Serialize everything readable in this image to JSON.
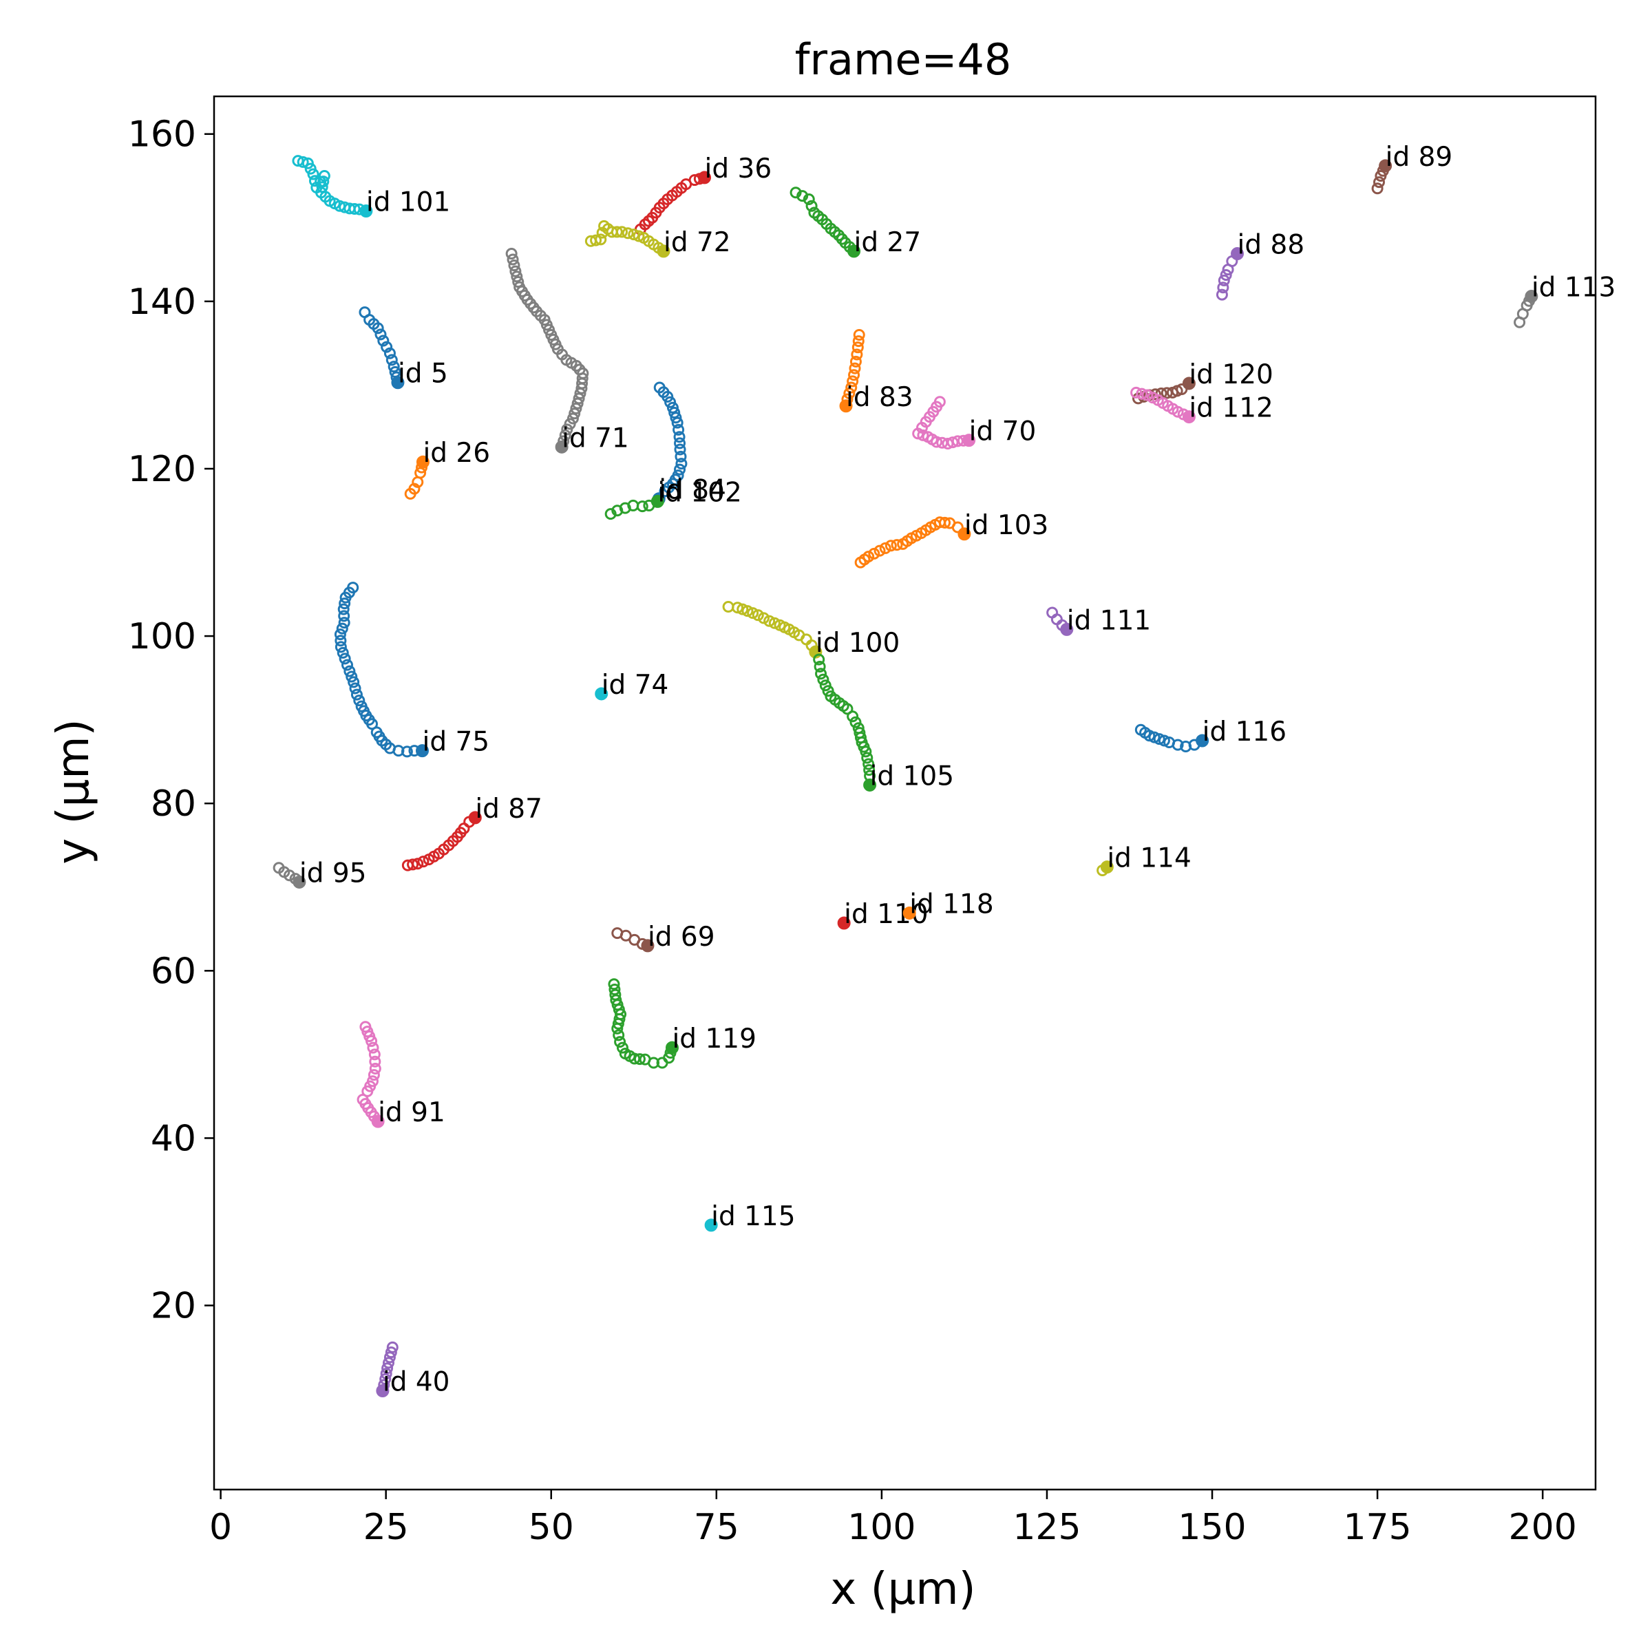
{
  "chart_data": {
    "type": "scatter",
    "title": "frame=48",
    "xlabel": "x (μm)",
    "ylabel": "y (μm)",
    "xlim": [
      -1,
      208
    ],
    "ylim": [
      -2,
      164.5
    ],
    "xticks": [
      0,
      25,
      50,
      75,
      100,
      125,
      150,
      175,
      200
    ],
    "yticks": [
      20,
      40,
      60,
      80,
      100,
      120,
      140,
      160
    ],
    "grid": false,
    "legend": "none",
    "marker": "open-circle",
    "tracks": [
      {
        "label": "id 101",
        "color": "#17becf",
        "points": [
          [
            11.7,
            156.8
          ],
          [
            13.2,
            156.5
          ],
          [
            14.0,
            155.2
          ],
          [
            14.5,
            153.6
          ],
          [
            15.7,
            155.0
          ],
          [
            15.2,
            153.0
          ],
          [
            16.5,
            152.0
          ],
          [
            18.0,
            151.4
          ],
          [
            19.5,
            151.1
          ],
          [
            21.0,
            151.0
          ],
          [
            22.0,
            150.8
          ]
        ]
      },
      {
        "label": "id 36",
        "color": "#d62728",
        "points": [
          [
            63.5,
            148.6
          ],
          [
            64.2,
            149.2
          ],
          [
            65.3,
            150.0
          ],
          [
            66.4,
            151.2
          ],
          [
            67.6,
            152.2
          ],
          [
            69.0,
            153.1
          ],
          [
            70.4,
            154.0
          ],
          [
            71.7,
            154.5
          ],
          [
            73.2,
            154.8
          ]
        ]
      },
      {
        "label": "id 72",
        "color": "#bcbd22",
        "points": [
          [
            56.0,
            147.2
          ],
          [
            57.5,
            147.4
          ],
          [
            58.0,
            149.0
          ],
          [
            59.2,
            148.3
          ],
          [
            60.7,
            148.3
          ],
          [
            62.5,
            148.0
          ],
          [
            64.0,
            147.6
          ],
          [
            65.5,
            146.8
          ],
          [
            67.0,
            146.0
          ]
        ]
      },
      {
        "label": "id 27",
        "color": "#2ca02c",
        "points": [
          [
            87.0,
            153.0
          ],
          [
            88.0,
            152.6
          ],
          [
            89.0,
            152.2
          ],
          [
            89.8,
            150.6
          ],
          [
            91.0,
            149.8
          ],
          [
            92.3,
            148.7
          ],
          [
            93.5,
            147.9
          ],
          [
            94.5,
            147.0
          ],
          [
            95.8,
            146.0
          ]
        ]
      },
      {
        "label": "id 89",
        "color": "#8c564b",
        "points": [
          [
            175.0,
            153.5
          ],
          [
            175.5,
            155.0
          ],
          [
            176.2,
            156.2
          ]
        ]
      },
      {
        "label": "id 88",
        "color": "#9467bd",
        "points": [
          [
            151.5,
            140.8
          ],
          [
            151.8,
            142.5
          ],
          [
            152.4,
            143.8
          ],
          [
            153.0,
            144.8
          ],
          [
            153.8,
            145.7
          ]
        ]
      },
      {
        "label": "id 113",
        "color": "#7f7f7f",
        "points": [
          [
            196.5,
            137.5
          ],
          [
            197.0,
            138.5
          ],
          [
            197.6,
            139.5
          ],
          [
            198.3,
            140.6
          ]
        ]
      },
      {
        "label": "id 5",
        "color": "#1f77b4",
        "points": [
          [
            21.8,
            138.7
          ],
          [
            22.5,
            137.8
          ],
          [
            23.8,
            136.8
          ],
          [
            24.6,
            135.3
          ],
          [
            25.6,
            133.8
          ],
          [
            26.2,
            132.2
          ],
          [
            26.8,
            130.3
          ]
        ]
      },
      {
        "label": "id 71",
        "color": "#7f7f7f",
        "points": [
          [
            44.0,
            145.7
          ],
          [
            44.6,
            143.6
          ],
          [
            45.2,
            141.7
          ],
          [
            46.4,
            140.2
          ],
          [
            47.8,
            138.8
          ],
          [
            49.0,
            137.8
          ],
          [
            50.0,
            136.0
          ],
          [
            51.0,
            134.3
          ],
          [
            52.3,
            133.0
          ],
          [
            53.8,
            132.3
          ],
          [
            54.8,
            131.4
          ],
          [
            54.6,
            129.6
          ],
          [
            54.0,
            127.8
          ],
          [
            53.3,
            126.0
          ],
          [
            52.4,
            124.7
          ],
          [
            51.6,
            122.6
          ]
        ]
      },
      {
        "label": "id 83",
        "color": "#ff7f0e",
        "points": [
          [
            96.6,
            136.0
          ],
          [
            96.4,
            134.5
          ],
          [
            96.1,
            132.8
          ],
          [
            95.8,
            131.2
          ],
          [
            95.4,
            129.7
          ],
          [
            94.8,
            128.3
          ],
          [
            94.6,
            127.5
          ]
        ]
      },
      {
        "label": "id 70",
        "color": "#e377c2",
        "points": [
          [
            108.8,
            128.0
          ],
          [
            107.8,
            126.8
          ],
          [
            106.7,
            125.6
          ],
          [
            105.5,
            124.2
          ],
          [
            107.0,
            123.8
          ],
          [
            108.3,
            123.2
          ],
          [
            110.0,
            123.0
          ],
          [
            111.5,
            123.3
          ],
          [
            113.2,
            123.4
          ]
        ]
      },
      {
        "label": "id 120",
        "color": "#8c564b",
        "points": [
          [
            138.8,
            128.4
          ],
          [
            140.5,
            128.8
          ],
          [
            142.3,
            129.0
          ],
          [
            144.0,
            129.1
          ],
          [
            145.4,
            129.5
          ],
          [
            146.5,
            130.2
          ]
        ]
      },
      {
        "label": "id 112",
        "color": "#e377c2",
        "points": [
          [
            138.5,
            129.1
          ],
          [
            140.2,
            128.8
          ],
          [
            141.8,
            128.2
          ],
          [
            143.3,
            127.5
          ],
          [
            144.8,
            126.8
          ],
          [
            146.5,
            126.2
          ]
        ]
      },
      {
        "label": "id 26",
        "color": "#ff7f0e",
        "points": [
          [
            28.7,
            117.0
          ],
          [
            29.3,
            117.6
          ],
          [
            29.8,
            118.4
          ],
          [
            30.2,
            119.5
          ],
          [
            30.6,
            120.8
          ]
        ]
      },
      {
        "label": "id 84",
        "color": "#1f77b4",
        "points": [
          [
            66.4,
            129.7
          ],
          [
            67.6,
            128.6
          ],
          [
            68.4,
            127.3
          ],
          [
            69.1,
            125.5
          ],
          [
            69.4,
            123.8
          ],
          [
            69.5,
            122.3
          ],
          [
            69.7,
            120.6
          ],
          [
            69.2,
            119.2
          ],
          [
            68.4,
            118.2
          ],
          [
            67.2,
            117.3
          ],
          [
            66.3,
            116.4
          ]
        ]
      },
      {
        "label": "id 102",
        "color": "#2ca02c",
        "points": [
          [
            59.0,
            114.6
          ],
          [
            60.0,
            115.0
          ],
          [
            61.2,
            115.3
          ],
          [
            62.4,
            115.6
          ],
          [
            63.8,
            115.5
          ],
          [
            64.8,
            115.6
          ],
          [
            66.1,
            116.1
          ]
        ]
      },
      {
        "label": "id 103",
        "color": "#ff7f0e",
        "points": [
          [
            96.8,
            108.8
          ],
          [
            98.0,
            109.5
          ],
          [
            99.7,
            110.2
          ],
          [
            101.4,
            110.8
          ],
          [
            103.2,
            111.0
          ],
          [
            104.5,
            111.7
          ],
          [
            106.0,
            112.3
          ],
          [
            107.4,
            113.0
          ],
          [
            108.8,
            113.6
          ],
          [
            110.3,
            113.5
          ],
          [
            111.5,
            113.0
          ],
          [
            112.5,
            112.2
          ]
        ]
      },
      {
        "label": "id 111",
        "color": "#9467bd",
        "points": [
          [
            125.8,
            102.8
          ],
          [
            126.5,
            102.0
          ],
          [
            127.3,
            101.3
          ],
          [
            128.0,
            100.8
          ]
        ]
      },
      {
        "label": "id 75",
        "color": "#1f77b4",
        "points": [
          [
            20.0,
            105.8
          ],
          [
            18.9,
            104.6
          ],
          [
            18.6,
            103.2
          ],
          [
            18.7,
            101.6
          ],
          [
            18.1,
            100.2
          ],
          [
            18.2,
            98.7
          ],
          [
            18.8,
            97.3
          ],
          [
            19.5,
            95.8
          ],
          [
            20.1,
            94.5
          ],
          [
            20.6,
            93.0
          ],
          [
            21.3,
            91.6
          ],
          [
            22.0,
            90.5
          ],
          [
            22.9,
            89.5
          ],
          [
            23.6,
            88.5
          ],
          [
            24.4,
            87.5
          ],
          [
            25.6,
            86.6
          ],
          [
            26.9,
            86.3
          ],
          [
            28.2,
            86.2
          ],
          [
            29.3,
            86.3
          ],
          [
            30.5,
            86.3
          ]
        ]
      },
      {
        "label": "id 100",
        "color": "#bcbd22",
        "points": [
          [
            76.8,
            103.5
          ],
          [
            78.2,
            103.4
          ],
          [
            79.7,
            103.0
          ],
          [
            81.3,
            102.5
          ],
          [
            83.0,
            101.8
          ],
          [
            84.6,
            101.3
          ],
          [
            86.0,
            100.8
          ],
          [
            87.5,
            100.1
          ],
          [
            88.6,
            99.6
          ],
          [
            89.4,
            98.9
          ],
          [
            90.0,
            98.1
          ]
        ]
      },
      {
        "label": "id 105",
        "color": "#2ca02c",
        "points": [
          [
            90.5,
            97.2
          ],
          [
            90.8,
            95.5
          ],
          [
            91.5,
            94.1
          ],
          [
            92.3,
            92.8
          ],
          [
            93.6,
            92.0
          ],
          [
            94.8,
            91.3
          ],
          [
            95.6,
            90.4
          ],
          [
            96.5,
            89.0
          ],
          [
            97.0,
            87.3
          ],
          [
            97.6,
            86.2
          ],
          [
            98.0,
            84.7
          ],
          [
            98.2,
            83.3
          ],
          [
            98.2,
            82.2
          ]
        ]
      },
      {
        "label": "id 74",
        "color": "#17becf",
        "points": [
          [
            57.6,
            93.1
          ]
        ]
      },
      {
        "label": "id 116",
        "color": "#1f77b4",
        "points": [
          [
            139.2,
            88.8
          ],
          [
            140.5,
            88.1
          ],
          [
            142.0,
            87.7
          ],
          [
            143.5,
            87.3
          ],
          [
            144.8,
            87.0
          ],
          [
            146.0,
            86.8
          ],
          [
            147.3,
            87.0
          ],
          [
            148.5,
            87.5
          ]
        ]
      },
      {
        "label": "id 87",
        "color": "#d62728",
        "points": [
          [
            28.3,
            72.6
          ],
          [
            29.8,
            72.8
          ],
          [
            31.5,
            73.3
          ],
          [
            33.0,
            74.0
          ],
          [
            34.5,
            75.0
          ],
          [
            35.8,
            76.0
          ],
          [
            36.8,
            77.0
          ],
          [
            37.6,
            77.8
          ],
          [
            38.5,
            78.3
          ]
        ]
      },
      {
        "label": "id 95",
        "color": "#7f7f7f",
        "points": [
          [
            8.8,
            72.3
          ],
          [
            9.6,
            71.8
          ],
          [
            10.4,
            71.4
          ],
          [
            11.3,
            71.0
          ],
          [
            11.9,
            70.6
          ]
        ]
      },
      {
        "label": "id 114",
        "color": "#bcbd22",
        "points": [
          [
            133.4,
            72.0
          ],
          [
            134.1,
            72.4
          ]
        ]
      },
      {
        "label": "id 110",
        "color": "#d62728",
        "points": [
          [
            94.3,
            65.7
          ]
        ]
      },
      {
        "label": "id 118",
        "color": "#ff7f0e",
        "points": [
          [
            104.2,
            66.9
          ]
        ]
      },
      {
        "label": "id 69",
        "color": "#8c564b",
        "points": [
          [
            60.0,
            64.5
          ],
          [
            61.3,
            64.2
          ],
          [
            62.6,
            63.7
          ],
          [
            63.8,
            63.2
          ],
          [
            64.6,
            63.0
          ]
        ]
      },
      {
        "label": "id 119",
        "color": "#2ca02c",
        "points": [
          [
            59.5,
            58.4
          ],
          [
            59.8,
            56.5
          ],
          [
            60.5,
            54.8
          ],
          [
            60.0,
            53.1
          ],
          [
            60.4,
            51.5
          ],
          [
            61.2,
            50.1
          ],
          [
            62.6,
            49.5
          ],
          [
            64.2,
            49.4
          ],
          [
            65.5,
            49.0
          ],
          [
            66.8,
            49.0
          ],
          [
            67.8,
            49.6
          ],
          [
            68.3,
            50.8
          ]
        ]
      },
      {
        "label": "id 91",
        "color": "#e377c2",
        "points": [
          [
            21.9,
            53.3
          ],
          [
            22.8,
            51.6
          ],
          [
            23.3,
            50.0
          ],
          [
            23.4,
            48.3
          ],
          [
            23.0,
            46.8
          ],
          [
            22.2,
            45.6
          ],
          [
            21.5,
            44.6
          ],
          [
            22.3,
            43.6
          ],
          [
            23.2,
            42.6
          ],
          [
            23.8,
            42.0
          ]
        ]
      },
      {
        "label": "id 115",
        "color": "#17becf",
        "points": [
          [
            74.2,
            29.6
          ]
        ]
      },
      {
        "label": "id 40",
        "color": "#9467bd",
        "points": [
          [
            26.0,
            15.0
          ],
          [
            25.6,
            13.8
          ],
          [
            25.2,
            12.5
          ],
          [
            24.9,
            11.2
          ],
          [
            24.5,
            9.8
          ]
        ]
      }
    ]
  }
}
